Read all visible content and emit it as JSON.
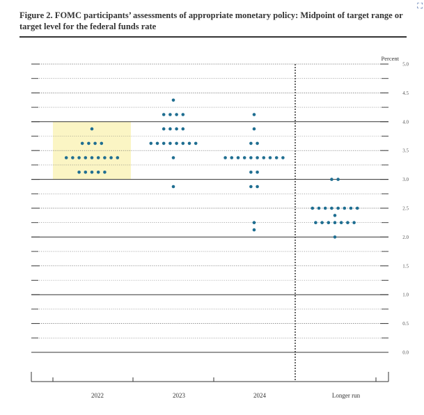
{
  "figure": {
    "title": "Figure 2.  FOMC participants’ assessments of appropriate monetary policy: Midpoint of target range or target level for the federal funds rate"
  },
  "icons": {
    "corner": "expand-icon"
  },
  "colors": {
    "dot": "#1f6e91",
    "highlight": "#fbf5c4",
    "line": "#333333"
  },
  "chart_data": {
    "type": "scatter",
    "title": "",
    "xlabel": "",
    "ylabel": "Percent",
    "ylim": [
      0,
      5.0
    ],
    "y_tick_labels": [
      "5.0",
      "4.5",
      "4.0",
      "3.5",
      "3.0",
      "2.5",
      "2.0",
      "1.5",
      "1.0",
      "0.5",
      "0.0"
    ],
    "categories": [
      "2022",
      "2023",
      "2024",
      "Longer run"
    ],
    "highlight": {
      "category": "2022",
      "y_range": [
        3.0,
        4.0
      ]
    },
    "points": [
      {
        "x": "2022",
        "y": 3.875,
        "count": 1
      },
      {
        "x": "2022",
        "y": 3.625,
        "count": 4
      },
      {
        "x": "2022",
        "y": 3.375,
        "count": 9
      },
      {
        "x": "2022",
        "y": 3.125,
        "count": 5
      },
      {
        "x": "2023",
        "y": 4.375,
        "count": 1
      },
      {
        "x": "2023",
        "y": 4.125,
        "count": 4
      },
      {
        "x": "2023",
        "y": 3.875,
        "count": 4
      },
      {
        "x": "2023",
        "y": 3.625,
        "count": 8
      },
      {
        "x": "2023",
        "y": 3.375,
        "count": 1
      },
      {
        "x": "2023",
        "y": 2.875,
        "count": 1
      },
      {
        "x": "2024",
        "y": 4.125,
        "count": 1
      },
      {
        "x": "2024",
        "y": 3.875,
        "count": 1
      },
      {
        "x": "2024",
        "y": 3.625,
        "count": 2
      },
      {
        "x": "2024",
        "y": 3.375,
        "count": 10
      },
      {
        "x": "2024",
        "y": 3.125,
        "count": 2
      },
      {
        "x": "2024",
        "y": 2.875,
        "count": 2
      },
      {
        "x": "2024",
        "y": 2.25,
        "count": 1
      },
      {
        "x": "2024",
        "y": 2.125,
        "count": 1
      },
      {
        "x": "Longer run",
        "y": 3.0,
        "count": 2
      },
      {
        "x": "Longer run",
        "y": 2.5,
        "count": 8
      },
      {
        "x": "Longer run",
        "y": 2.375,
        "count": 1
      },
      {
        "x": "Longer run",
        "y": 2.25,
        "count": 7
      },
      {
        "x": "Longer run",
        "y": 2.0,
        "count": 1
      }
    ]
  }
}
